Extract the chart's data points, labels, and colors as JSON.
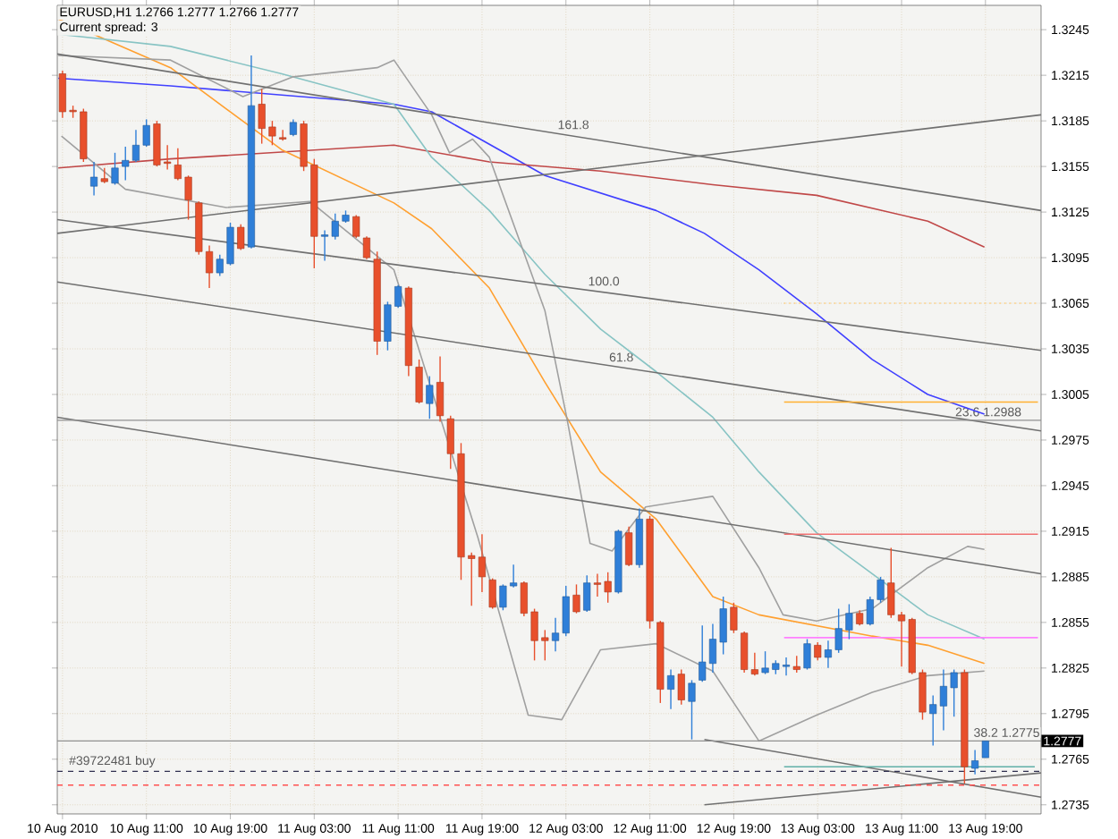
{
  "chart_data": {
    "type": "candlestick",
    "title": "EURUSD,H1 1.2766 1.2777 1.2766 1.2777",
    "subtitle": "Current spread: 3",
    "x": [
      "2010-08-10T03:00",
      "2010-08-10T04:00",
      "2010-08-10T05:00",
      "2010-08-10T06:00",
      "2010-08-10T07:00",
      "2010-08-10T08:00",
      "2010-08-10T09:00",
      "2010-08-10T10:00",
      "2010-08-10T11:00",
      "2010-08-10T12:00",
      "2010-08-10T13:00",
      "2010-08-10T14:00",
      "2010-08-10T15:00",
      "2010-08-10T16:00",
      "2010-08-10T17:00",
      "2010-08-10T18:00",
      "2010-08-10T19:00",
      "2010-08-10T20:00",
      "2010-08-10T21:00",
      "2010-08-10T22:00",
      "2010-08-10T23:00",
      "2010-08-11T00:00",
      "2010-08-11T01:00",
      "2010-08-11T02:00",
      "2010-08-11T03:00",
      "2010-08-11T04:00",
      "2010-08-11T05:00",
      "2010-08-11T06:00",
      "2010-08-11T07:00",
      "2010-08-11T08:00",
      "2010-08-11T09:00",
      "2010-08-11T10:00",
      "2010-08-11T11:00",
      "2010-08-11T12:00",
      "2010-08-11T13:00",
      "2010-08-11T14:00",
      "2010-08-11T15:00",
      "2010-08-11T16:00",
      "2010-08-11T17:00",
      "2010-08-11T18:00",
      "2010-08-11T19:00",
      "2010-08-11T20:00",
      "2010-08-11T21:00",
      "2010-08-11T22:00",
      "2010-08-11T23:00",
      "2010-08-12T00:00",
      "2010-08-12T01:00",
      "2010-08-12T02:00",
      "2010-08-12T03:00",
      "2010-08-12T04:00",
      "2010-08-12T05:00",
      "2010-08-12T06:00",
      "2010-08-12T07:00",
      "2010-08-12T08:00",
      "2010-08-12T09:00",
      "2010-08-12T10:00",
      "2010-08-12T11:00",
      "2010-08-12T12:00",
      "2010-08-12T13:00",
      "2010-08-12T14:00",
      "2010-08-12T15:00",
      "2010-08-12T16:00",
      "2010-08-12T17:00",
      "2010-08-12T18:00",
      "2010-08-12T19:00",
      "2010-08-12T20:00",
      "2010-08-12T21:00",
      "2010-08-12T22:00",
      "2010-08-12T23:00",
      "2010-08-13T00:00",
      "2010-08-13T01:00",
      "2010-08-13T02:00",
      "2010-08-13T03:00",
      "2010-08-13T04:00",
      "2010-08-13T05:00",
      "2010-08-13T06:00",
      "2010-08-13T07:00",
      "2010-08-13T08:00",
      "2010-08-13T09:00",
      "2010-08-13T10:00",
      "2010-08-13T11:00",
      "2010-08-13T12:00",
      "2010-08-13T13:00",
      "2010-08-13T14:00",
      "2010-08-13T15:00",
      "2010-08-13T16:00",
      "2010-08-13T17:00",
      "2010-08-13T18:00",
      "2010-08-13T19:00"
    ],
    "ohlc": [
      [
        1.3216,
        1.3218,
        1.3187,
        1.3191
      ],
      [
        1.3192,
        1.3195,
        1.3187,
        1.3191
      ],
      [
        1.3191,
        1.3193,
        1.3158,
        1.316
      ],
      [
        1.3142,
        1.3158,
        1.3136,
        1.3148
      ],
      [
        1.3147,
        1.3154,
        1.3144,
        1.3145
      ],
      [
        1.3144,
        1.3164,
        1.3143,
        1.3154
      ],
      [
        1.3155,
        1.3168,
        1.3146,
        1.3159
      ],
      [
        1.3159,
        1.3179,
        1.3158,
        1.3169
      ],
      [
        1.3169,
        1.3186,
        1.3168,
        1.3182
      ],
      [
        1.3183,
        1.3185,
        1.3155,
        1.3156
      ],
      [
        1.3158,
        1.3169,
        1.3153,
        1.3157
      ],
      [
        1.3156,
        1.3167,
        1.3146,
        1.3147
      ],
      [
        1.3148,
        1.3149,
        1.312,
        1.3133
      ],
      [
        1.3131,
        1.3132,
        1.3097,
        1.3099
      ],
      [
        1.3099,
        1.3103,
        1.3075,
        1.3085
      ],
      [
        1.3085,
        1.3097,
        1.3083,
        1.3094
      ],
      [
        1.3091,
        1.3118,
        1.309,
        1.3115
      ],
      [
        1.3115,
        1.3117,
        1.31,
        1.3101
      ],
      [
        1.3102,
        1.3228,
        1.3101,
        1.3195
      ],
      [
        1.3196,
        1.3206,
        1.317,
        1.318
      ],
      [
        1.3181,
        1.3185,
        1.3169,
        1.3175
      ],
      [
        1.3174,
        1.3179,
        1.3172,
        1.3173
      ],
      [
        1.3176,
        1.3186,
        1.3175,
        1.3184
      ],
      [
        1.3183,
        1.3185,
        1.3152,
        1.3155
      ],
      [
        1.3156,
        1.316,
        1.3088,
        1.3109
      ],
      [
        1.3109,
        1.3113,
        1.3093,
        1.311
      ],
      [
        1.3109,
        1.3124,
        1.3107,
        1.3119
      ],
      [
        1.3119,
        1.3126,
        1.3118,
        1.3123
      ],
      [
        1.3122,
        1.3123,
        1.3108,
        1.3109
      ],
      [
        1.3108,
        1.3109,
        1.3094,
        1.3095
      ],
      [
        1.3094,
        1.3099,
        1.3031,
        1.304
      ],
      [
        1.304,
        1.3066,
        1.3034,
        1.3064
      ],
      [
        1.3063,
        1.3077,
        1.3062,
        1.3076
      ],
      [
        1.3075,
        1.3076,
        1.3017,
        1.3024
      ],
      [
        1.3023,
        1.3028,
        1.2999,
        1.3
      ],
      [
        1.2999,
        1.3017,
        1.2989,
        1.3011
      ],
      [
        1.3013,
        1.303,
        1.2987,
        1.2991
      ],
      [
        1.2989,
        1.2991,
        1.2956,
        1.2966
      ],
      [
        1.2966,
        1.2973,
        1.2883,
        1.2898
      ],
      [
        1.2899,
        1.2901,
        1.2866,
        1.2897
      ],
      [
        1.2898,
        1.2913,
        1.2875,
        1.2885
      ],
      [
        1.2883,
        1.2884,
        1.2864,
        1.2865
      ],
      [
        1.2865,
        1.288,
        1.2863,
        1.2879
      ],
      [
        1.2879,
        1.2893,
        1.2878,
        1.2881
      ],
      [
        1.2881,
        1.2882,
        1.2859,
        1.2861
      ],
      [
        1.2862,
        1.2864,
        1.283,
        1.2843
      ],
      [
        1.2845,
        1.285,
        1.283,
        1.2843
      ],
      [
        1.2843,
        1.2858,
        1.2836,
        1.2848
      ],
      [
        1.2848,
        1.2879,
        1.2846,
        1.2872
      ],
      [
        1.2873,
        1.288,
        1.2861,
        1.2862
      ],
      [
        1.2863,
        1.2886,
        1.2862,
        1.2881
      ],
      [
        1.2881,
        1.2887,
        1.2872,
        1.288
      ],
      [
        1.2882,
        1.2888,
        1.2868,
        1.2875
      ],
      [
        1.2875,
        1.2916,
        1.2874,
        1.2915
      ],
      [
        1.2914,
        1.2918,
        1.2892,
        1.2893
      ],
      [
        1.2893,
        1.293,
        1.2891,
        1.2923
      ],
      [
        1.2923,
        1.2925,
        1.2851,
        1.2856
      ],
      [
        1.2855,
        1.2856,
        1.2802,
        1.2811
      ],
      [
        1.2811,
        1.2824,
        1.2798,
        1.282
      ],
      [
        1.2821,
        1.2824,
        1.2801,
        1.2804
      ],
      [
        1.2803,
        1.2817,
        1.2778,
        1.2815
      ],
      [
        1.2817,
        1.2853,
        1.2816,
        1.2829
      ],
      [
        1.2828,
        1.2854,
        1.2822,
        1.2844
      ],
      [
        1.2842,
        1.2872,
        1.2834,
        1.2864
      ],
      [
        1.2865,
        1.2868,
        1.2848,
        1.285
      ],
      [
        1.2848,
        1.2849,
        1.2822,
        1.2824
      ],
      [
        1.2824,
        1.2835,
        1.282,
        1.2821
      ],
      [
        1.2822,
        1.2836,
        1.2821,
        1.2825
      ],
      [
        1.2824,
        1.283,
        1.2821,
        1.2828
      ],
      [
        1.2826,
        1.2832,
        1.282,
        1.2827
      ],
      [
        1.2826,
        1.2833,
        1.2822,
        1.2824
      ],
      [
        1.2825,
        1.2844,
        1.2824,
        1.2841
      ],
      [
        1.284,
        1.2842,
        1.283,
        1.2832
      ],
      [
        1.2832,
        1.2843,
        1.2825,
        1.2837
      ],
      [
        1.2837,
        1.2864,
        1.2835,
        1.2851
      ],
      [
        1.285,
        1.2867,
        1.2844,
        1.2861
      ],
      [
        1.2861,
        1.2863,
        1.2853,
        1.2854
      ],
      [
        1.2854,
        1.2872,
        1.2853,
        1.287
      ],
      [
        1.287,
        1.2885,
        1.2868,
        1.2883
      ],
      [
        1.2881,
        1.2904,
        1.2858,
        1.286
      ],
      [
        1.286,
        1.2862,
        1.2826,
        1.2856
      ],
      [
        1.2857,
        1.2858,
        1.2821,
        1.2822
      ],
      [
        1.2822,
        1.2824,
        1.2791,
        1.2796
      ],
      [
        1.2795,
        1.2807,
        1.2774,
        1.2801
      ],
      [
        1.28,
        1.2824,
        1.2784,
        1.2813
      ],
      [
        1.2812,
        1.2824,
        1.2793,
        1.2822
      ],
      [
        1.2822,
        1.2824,
        1.2749,
        1.276
      ],
      [
        1.2759,
        1.2771,
        1.2755,
        1.2764
      ],
      [
        1.2766,
        1.2777,
        1.2766,
        1.2777
      ]
    ],
    "colors": [
      "#e8502c",
      "#e8502c",
      "#e8502c",
      "#2f7fd8",
      "#e8502c",
      "#2f7fd8",
      "#2f7fd8",
      "#2f7fd8",
      "#2f7fd8",
      "#e8502c",
      "#e8502c",
      "#e8502c",
      "#e8502c",
      "#e8502c",
      "#e8502c",
      "#2f7fd8",
      "#2f7fd8",
      "#e8502c",
      "#2f7fd8",
      "#e8502c",
      "#e8502c",
      "#e8502c",
      "#2f7fd8",
      "#e8502c",
      "#e8502c",
      "#2f7fd8",
      "#2f7fd8",
      "#2f7fd8",
      "#e8502c",
      "#e8502c",
      "#e8502c",
      "#2f7fd8",
      "#2f7fd8",
      "#e8502c",
      "#e8502c",
      "#2f7fd8",
      "#e8502c",
      "#e8502c",
      "#e8502c",
      "#e8502c",
      "#e8502c",
      "#e8502c",
      "#2f7fd8",
      "#2f7fd8",
      "#e8502c",
      "#e8502c",
      "#e8502c",
      "#2f7fd8",
      "#2f7fd8",
      "#e8502c",
      "#2f7fd8",
      "#e8502c",
      "#e8502c",
      "#2f7fd8",
      "#e8502c",
      "#2f7fd8",
      "#e8502c",
      "#e8502c",
      "#2f7fd8",
      "#e8502c",
      "#2f7fd8",
      "#2f7fd8",
      "#2f7fd8",
      "#2f7fd8",
      "#e8502c",
      "#e8502c",
      "#e8502c",
      "#2f7fd8",
      "#2f7fd8",
      "#2f7fd8",
      "#e8502c",
      "#2f7fd8",
      "#e8502c",
      "#2f7fd8",
      "#2f7fd8",
      "#2f7fd8",
      "#e8502c",
      "#2f7fd8",
      "#2f7fd8",
      "#e8502c",
      "#e8502c",
      "#e8502c",
      "#e8502c",
      "#2f7fd8",
      "#2f7fd8",
      "#2f7fd8",
      "#e8502c",
      "#2f7fd8",
      "#2f7fd8"
    ],
    "series": [
      {
        "type": "line",
        "color": "#4040ff",
        "x": [
          "2010-08-10T02:36",
          "2010-08-10T13:18",
          "2010-08-11T10:36",
          "2010-08-11T14:12",
          "2010-08-12T01:00",
          "2010-08-12T11:36",
          "2010-08-12T16:12",
          "2010-08-12T21:24",
          "2010-08-13T02:54",
          "2010-08-13T08:12",
          "2010-08-13T13:30",
          "2010-08-13T18:54"
        ],
        "values": [
          1.3213,
          1.3208,
          1.3196,
          1.3191,
          1.3149,
          1.3126,
          1.3111,
          1.3087,
          1.3058,
          1.3028,
          1.3005,
          1.2992
        ]
      },
      {
        "type": "line",
        "color": "#c04848",
        "x": [
          "2010-08-10T02:36",
          "2010-08-10T13:18",
          "2010-08-11T10:36",
          "2010-08-11T19:42",
          "2010-08-12T06:18",
          "2010-08-12T17:00",
          "2010-08-13T02:54",
          "2010-08-13T13:30",
          "2010-08-13T18:54"
        ],
        "values": [
          1.3154,
          1.316,
          1.3169,
          1.3158,
          1.3152,
          1.3143,
          1.3136,
          1.3119,
          1.3102
        ]
      },
      {
        "type": "line",
        "color": "#ffa030",
        "x": [
          "2010-08-10T02:36",
          "2010-08-10T13:18",
          "2010-08-10T23:54",
          "2010-08-11T10:36",
          "2010-08-11T14:12",
          "2010-08-11T19:42",
          "2010-08-12T01:00",
          "2010-08-12T06:18",
          "2010-08-12T11:36",
          "2010-08-12T17:00",
          "2010-08-12T21:24",
          "2010-08-13T08:12",
          "2010-08-13T13:30",
          "2010-08-13T18:54"
        ],
        "values": [
          1.3252,
          1.322,
          1.3166,
          1.3131,
          1.3114,
          1.3075,
          1.3013,
          1.2954,
          1.2923,
          1.2872,
          1.286,
          1.2846,
          1.284,
          1.2828
        ]
      },
      {
        "type": "line",
        "color": "#88c4c4",
        "x": [
          "2010-08-10T02:36",
          "2010-08-10T13:18",
          "2010-08-10T23:54",
          "2010-08-11T10:36",
          "2010-08-11T14:12",
          "2010-08-11T19:42",
          "2010-08-12T01:00",
          "2010-08-12T06:18",
          "2010-08-12T11:36",
          "2010-08-12T17:00",
          "2010-08-12T21:24",
          "2010-08-13T02:54",
          "2010-08-13T08:12",
          "2010-08-13T13:30",
          "2010-08-13T18:54"
        ],
        "values": [
          1.3242,
          1.3234,
          1.3216,
          1.3196,
          1.3161,
          1.3126,
          1.3084,
          1.3048,
          1.302,
          1.299,
          1.2954,
          1.2914,
          1.2887,
          1.286,
          1.2844
        ]
      },
      {
        "type": "line",
        "color": "#a0a0a0",
        "x": [
          "2010-08-10T02:36",
          "2010-08-10T13:18",
          "2010-08-10T20:12",
          "2010-08-11T01:00",
          "2010-08-11T09:00",
          "2010-08-11T10:36",
          "2010-08-11T14:12",
          "2010-08-11T15:54",
          "2010-08-11T18:06",
          "2010-08-11T19:42",
          "2010-08-12T01:00",
          "2010-08-12T03:06",
          "2010-08-12T05:18",
          "2010-08-12T07:24",
          "2010-08-12T10:36",
          "2010-08-12T17:00",
          "2010-08-12T21:24",
          "2010-08-12T23:42",
          "2010-08-13T02:54",
          "2010-08-13T08:12",
          "2010-08-13T13:30",
          "2010-08-13T17:18",
          "2010-08-13T18:54"
        ],
        "values": [
          1.3228,
          1.3225,
          1.3201,
          1.3214,
          1.322,
          1.3225,
          1.3189,
          1.3164,
          1.3173,
          1.3161,
          1.306,
          1.2989,
          1.2907,
          1.2902,
          1.2931,
          1.2938,
          1.2891,
          1.286,
          1.2856,
          1.2864,
          1.2891,
          1.2905,
          1.2903
        ]
      },
      {
        "type": "line",
        "color": "#a0a0a0",
        "x": [
          "2010-08-10T02:54",
          "2010-08-10T09:00",
          "2010-08-10T18:36",
          "2010-08-11T02:36",
          "2010-08-11T10:36",
          "2010-08-11T18:36",
          "2010-08-11T23:24",
          "2010-08-12T02:36",
          "2010-08-12T06:18",
          "2010-08-12T11:36",
          "2010-08-12T17:00",
          "2010-08-12T21:24",
          "2010-08-13T02:54",
          "2010-08-13T08:12",
          "2010-08-13T13:30",
          "2010-08-13T18:54"
        ],
        "values": [
          1.3175,
          1.314,
          1.3128,
          1.3132,
          1.3087,
          1.2911,
          1.2794,
          1.2791,
          1.2837,
          1.2841,
          1.2823,
          1.2777,
          1.2794,
          1.2809,
          1.282,
          1.2823
        ]
      },
      {
        "type": "line",
        "color": "#707070",
        "x": [
          "2010-08-10T02:30",
          "2010-08-14T00:18"
        ],
        "values": [
          1.3229,
          1.3126
        ]
      },
      {
        "type": "line",
        "color": "#707070",
        "x": [
          "2010-08-10T02:30",
          "2010-08-14T00:18"
        ],
        "values": [
          1.3111,
          1.3189
        ]
      },
      {
        "type": "line",
        "color": "#707070",
        "x": [
          "2010-08-10T02:30",
          "2010-08-14T00:18"
        ],
        "values": [
          1.312,
          1.3034
        ]
      },
      {
        "type": "line",
        "color": "#707070",
        "x": [
          "2010-08-10T02:30",
          "2010-08-14T00:18"
        ],
        "values": [
          1.3079,
          1.2981
        ]
      },
      {
        "type": "line",
        "color": "#707070",
        "x": [
          "2010-08-10T02:30",
          "2010-08-14T00:18"
        ],
        "values": [
          1.299,
          1.2887
        ]
      },
      {
        "type": "line",
        "color": "#707070",
        "x": [
          "2010-08-12T16:12",
          "2010-08-14T00:18"
        ],
        "values": [
          1.2778,
          1.274
        ]
      },
      {
        "type": "line",
        "color": "#707070",
        "x": [
          "2010-08-12T16:12",
          "2010-08-14T00:18"
        ],
        "values": [
          1.2735,
          1.2756
        ]
      },
      {
        "type": "line",
        "color": "#ffb030",
        "x": [
          "2010-08-12T23:48",
          "2010-08-14T00:00"
        ],
        "values": [
          1.3,
          1.3
        ]
      },
      {
        "type": "line",
        "color": "#ffd080",
        "line_style": "dotted",
        "x": [
          "2010-08-12T23:48",
          "2010-08-14T00:00"
        ],
        "values": [
          1.3065,
          1.3065
        ]
      },
      {
        "type": "line",
        "color": "#f07070",
        "x": [
          "2010-08-12T23:48",
          "2010-08-14T00:00"
        ],
        "values": [
          1.2913,
          1.2913
        ]
      },
      {
        "type": "line",
        "color": "#ff80ff",
        "x": [
          "2010-08-12T23:48",
          "2010-08-14T00:00"
        ],
        "values": [
          1.2845,
          1.2845
        ]
      },
      {
        "type": "line",
        "color": "#60b0a8",
        "x": [
          "2010-08-12T23:48",
          "2010-08-13T23:42"
        ],
        "values": [
          1.276,
          1.276
        ]
      }
    ],
    "xlim": [
      "2010-08-10T02:30",
      "2010-08-14T00:18"
    ],
    "ylim": [
      1.2729,
      1.3261
    ],
    "xticks": [
      {
        "value": "2010-08-10T03:00",
        "label": "10 Aug 2010"
      },
      {
        "value": "2010-08-10T11:00",
        "label": "10 Aug 11:00"
      },
      {
        "value": "2010-08-10T19:00",
        "label": "10 Aug 19:00"
      },
      {
        "value": "2010-08-11T03:00",
        "label": "11 Aug 03:00"
      },
      {
        "value": "2010-08-11T11:00",
        "label": "11 Aug 11:00"
      },
      {
        "value": "2010-08-11T19:00",
        "label": "11 Aug 19:00"
      },
      {
        "value": "2010-08-12T03:00",
        "label": "12 Aug 03:00"
      },
      {
        "value": "2010-08-12T11:00",
        "label": "12 Aug 11:00"
      },
      {
        "value": "2010-08-12T19:00",
        "label": "12 Aug 19:00"
      },
      {
        "value": "2010-08-13T03:00",
        "label": "13 Aug 03:00"
      },
      {
        "value": "2010-08-13T11:00",
        "label": "13 Aug 11:00"
      },
      {
        "value": "2010-08-13T19:00",
        "label": "13 Aug 19:00"
      }
    ],
    "yticks": [
      1.2735,
      1.2765,
      1.2795,
      1.2825,
      1.2855,
      1.2885,
      1.2915,
      1.2945,
      1.2975,
      1.3005,
      1.3035,
      1.3065,
      1.3095,
      1.3125,
      1.3155,
      1.3185,
      1.3215,
      1.3245
    ],
    "ref_lines": [
      {
        "axis": "y",
        "value": 1.2988,
        "color": "#909090"
      },
      {
        "axis": "y",
        "value": 1.2777,
        "label": "1.2777",
        "color": "#909090"
      },
      {
        "axis": "y",
        "value": 1.2757,
        "color": "#303050",
        "line_style": "dashed"
      },
      {
        "axis": "y",
        "value": 1.2748,
        "color": "#ff5050",
        "line_style": "dashed"
      }
    ],
    "annotations": [
      {
        "text": "161.8",
        "x": "2010-08-12T02:06",
        "y": 1.3177
      },
      {
        "text": "100.0",
        "x": "2010-08-12T05:00",
        "y": 1.3074
      },
      {
        "text": "61.8",
        "x": "2010-08-12T07:00",
        "y": 1.3024
      },
      {
        "text": "23.6 1.2988",
        "x": "2010-08-13T16:00",
        "y": 1.2988
      },
      {
        "text": "38.2 1.2775",
        "x": "2010-08-13T17:45",
        "y": 1.2777
      },
      {
        "text": "#39722481 buy",
        "x": "2010-08-10T03:30",
        "y": 1.2757
      }
    ],
    "grid": true
  }
}
